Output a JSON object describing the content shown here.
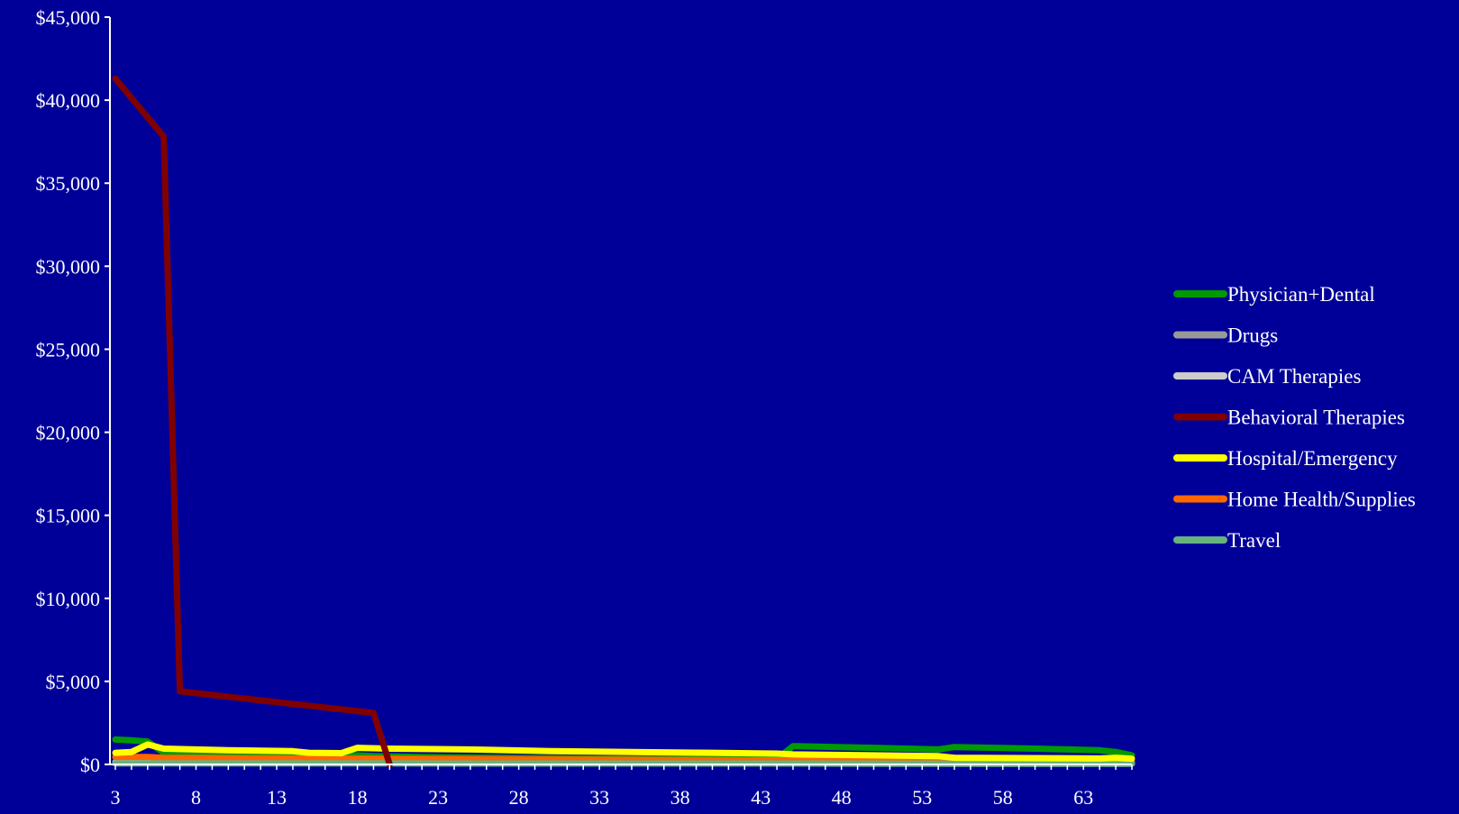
{
  "colors": {
    "background": "#000099",
    "axis": "#ffffff",
    "text": "#ffffff"
  },
  "chart_data": {
    "type": "line",
    "title": "",
    "xlabel": "",
    "ylabel": "",
    "xlim": [
      3,
      66
    ],
    "ylim": [
      0,
      45000
    ],
    "y_tick_values": [
      0,
      5000,
      10000,
      15000,
      20000,
      25000,
      30000,
      35000,
      40000,
      45000
    ],
    "y_tick_labels": [
      "$0",
      "$5,000",
      "$10,000",
      "$15,000",
      "$20,000",
      "$25,000",
      "$30,000",
      "$35,000",
      "$40,000",
      "$45,000"
    ],
    "x_tick_values": [
      3,
      8,
      13,
      18,
      23,
      28,
      33,
      38,
      43,
      48,
      53,
      58,
      63
    ],
    "x_tick_labels": [
      "3",
      "8",
      "13",
      "18",
      "23",
      "28",
      "33",
      "38",
      "43",
      "48",
      "53",
      "58",
      "63"
    ],
    "grid": false,
    "legend_position": "right",
    "series": [
      {
        "name": "Physician+Dental",
        "color": "#009900",
        "x": [
          3,
          4,
          5,
          6,
          7,
          10,
          14,
          15,
          17,
          18,
          19,
          22,
          25,
          30,
          35,
          40,
          44,
          45,
          50,
          54,
          55,
          60,
          64,
          65,
          66
        ],
        "y": [
          1500,
          1450,
          1380,
          700,
          650,
          600,
          550,
          500,
          480,
          550,
          500,
          450,
          420,
          380,
          350,
          330,
          320,
          1100,
          1000,
          900,
          1050,
          950,
          850,
          750,
          550
        ]
      },
      {
        "name": "Drugs",
        "color": "#999999",
        "x": [
          3,
          10,
          20,
          30,
          40,
          50,
          60,
          66
        ],
        "y": [
          150,
          140,
          130,
          120,
          110,
          100,
          90,
          80
        ]
      },
      {
        "name": "CAM Therapies",
        "color": "#cccccc",
        "x": [
          3,
          10,
          20,
          30,
          40,
          50,
          60,
          66
        ],
        "y": [
          100,
          90,
          80,
          70,
          60,
          50,
          45,
          40
        ]
      },
      {
        "name": "Behavioral Therapies",
        "color": "#800000",
        "x": [
          3,
          6,
          7,
          19,
          20
        ],
        "y": [
          41300,
          37800,
          4400,
          3100,
          0
        ]
      },
      {
        "name": "Hospital/Emergency",
        "color": "#ffff00",
        "x": [
          3,
          4,
          5,
          6,
          10,
          14,
          15,
          17,
          18,
          20,
          25,
          30,
          35,
          40,
          44,
          45,
          50,
          54,
          55,
          60,
          64,
          65,
          66
        ],
        "y": [
          700,
          750,
          1200,
          950,
          850,
          800,
          700,
          680,
          1000,
          950,
          900,
          800,
          750,
          700,
          650,
          600,
          550,
          500,
          400,
          380,
          360,
          400,
          350
        ]
      },
      {
        "name": "Home Health/Supplies",
        "color": "#ff6600",
        "x": [
          3,
          5,
          6,
          10,
          15,
          20,
          25,
          30,
          35,
          40,
          45,
          50,
          55,
          60,
          66
        ],
        "y": [
          450,
          450,
          400,
          380,
          360,
          340,
          320,
          300,
          280,
          260,
          240,
          220,
          200,
          180,
          160
        ]
      },
      {
        "name": "Travel",
        "color": "#66b380",
        "x": [
          3,
          10,
          20,
          30,
          40,
          50,
          60,
          66
        ],
        "y": [
          60,
          60,
          60,
          55,
          55,
          50,
          50,
          50
        ]
      }
    ]
  }
}
